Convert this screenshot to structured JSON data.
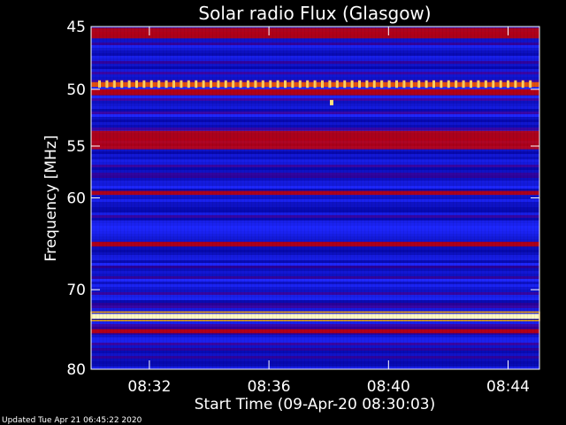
{
  "chart_data": {
    "type": "heatmap",
    "title": "Solar radio Flux (Glasgow)",
    "xlabel": "Start Time (09-Apr-20 08:30:03)",
    "ylabel": "Frequency [MHz]",
    "x_ticks": [
      "08:32",
      "08:36",
      "08:40",
      "08:44"
    ],
    "y_ticks": [
      "45",
      "50",
      "55",
      "60",
      "70",
      "80"
    ],
    "y_scale": "log",
    "ylim": [
      45,
      80
    ],
    "x_range": [
      "08:30:03",
      "08:45:03"
    ],
    "intensity_bands": [
      {
        "freq_range": [
          45.1,
          45.9
        ],
        "level": "red"
      },
      {
        "freq_range": [
          49.4,
          49.8
        ],
        "level": "orange-yellow spikes"
      },
      {
        "freq_range": [
          50.0,
          50.5
        ],
        "level": "red"
      },
      {
        "freq_range": [
          53.6,
          55.3
        ],
        "level": "red"
      },
      {
        "freq_range": [
          59.3,
          59.7
        ],
        "level": "red"
      },
      {
        "freq_range": [
          64.6,
          65.1
        ],
        "level": "red"
      },
      {
        "freq_range": [
          72.9,
          73.5
        ],
        "level": "white-yellow"
      },
      {
        "freq_range": [
          74.8,
          75.3
        ],
        "level": "red"
      }
    ],
    "colors": {
      "low": "#0000c8",
      "mid": "#d00000",
      "high": "#ffffc0",
      "background": "#000000"
    }
  },
  "footer": "Updated Tue Apr 21 06:45:22 2020"
}
